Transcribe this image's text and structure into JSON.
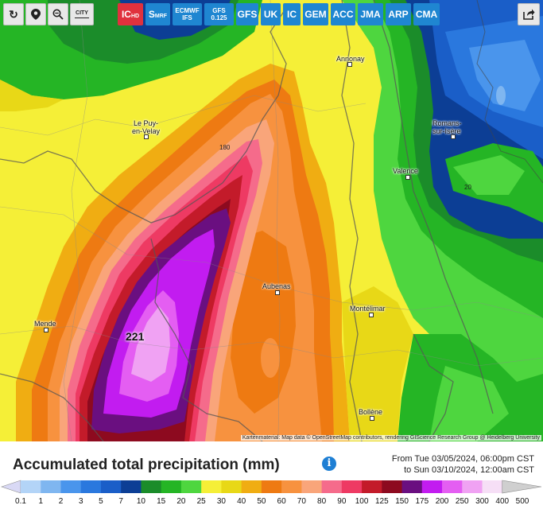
{
  "toolbar": {
    "reload_icon": "reload-icon",
    "location_icon": "location-pin-icon",
    "zoom_icon": "zoom-out-icon",
    "city_label": "CITY",
    "share_icon": "share-icon",
    "models": [
      {
        "label": "IC",
        "sub": "HD",
        "active": true
      },
      {
        "label": "S",
        "sub": "MRF"
      },
      {
        "label": "ECMWF\nIFS"
      },
      {
        "label": "GFS\n0.125"
      },
      {
        "label": "GFS"
      },
      {
        "label": "UK"
      },
      {
        "label": "IC"
      },
      {
        "label": "GEM"
      },
      {
        "label": "ACC"
      },
      {
        "label": "JMA"
      },
      {
        "label": "ARP"
      },
      {
        "label": "CMA"
      }
    ]
  },
  "map": {
    "cities": {
      "annonay": "Annonay",
      "le_puy": "Le Puy-\nen-Velay",
      "romans": "Romans-\nsur-Isère",
      "valence": "Valence",
      "aubenas": "Aubenas",
      "montelimar": "Montélimar",
      "mende": "Mende",
      "bollene": "Bollène"
    },
    "contours": {
      "c180": "180",
      "c20": "20"
    },
    "max_value": "221",
    "credit": "Kartenmaterial: Map data © OpenStreetMap contributors, rendering GIScience Research Group @ Heidelberg University"
  },
  "legend": {
    "title": "Accumulated total precipitation (mm)",
    "from": "From Tue 03/05/2024, 06:00pm CST",
    "to": "to Sun 03/10/2024, 12:00am CST",
    "values": [
      "0.1",
      "1",
      "2",
      "3",
      "5",
      "7",
      "10",
      "15",
      "20",
      "25",
      "30",
      "40",
      "50",
      "60",
      "70",
      "80",
      "90",
      "100",
      "125",
      "150",
      "175",
      "200",
      "250",
      "300",
      "400",
      "500"
    ],
    "colors": [
      "#d9d9f5",
      "#b3d4f7",
      "#7fb6f0",
      "#4a95ec",
      "#2a78de",
      "#1a5ec8",
      "#0c3e95",
      "#1b8c2a",
      "#25b525",
      "#4ed63f",
      "#f5ef37",
      "#e8d817",
      "#f0ad12",
      "#ee7a12",
      "#f7923f",
      "#f9a57a",
      "#f56b8b",
      "#ee3a63",
      "#c31b2a",
      "#8d0a1f",
      "#6a0f80",
      "#c21cf0",
      "#e45ef2",
      "#f0a2f3",
      "#f6dff6",
      "#cfcfcf"
    ]
  }
}
